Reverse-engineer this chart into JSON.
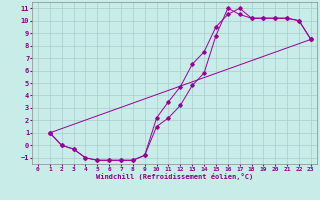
{
  "bg_color": "#c8ece8",
  "grid_color": "#aacccc",
  "line_color": "#990099",
  "xlim": [
    -0.5,
    23.5
  ],
  "ylim": [
    -1.5,
    11.5
  ],
  "xticks": [
    0,
    1,
    2,
    3,
    4,
    5,
    6,
    7,
    8,
    9,
    10,
    11,
    12,
    13,
    14,
    15,
    16,
    17,
    18,
    19,
    20,
    21,
    22,
    23
  ],
  "yticks": [
    -1,
    0,
    1,
    2,
    3,
    4,
    5,
    6,
    7,
    8,
    9,
    10,
    11
  ],
  "xlabel": "Windchill (Refroidissement éolien,°C)",
  "line1_x": [
    1,
    2,
    3,
    4,
    5,
    6,
    7,
    8,
    9,
    10,
    11,
    12,
    13,
    14,
    15,
    16,
    17,
    18,
    19,
    20,
    21,
    22,
    23
  ],
  "line1_y": [
    1.0,
    0.0,
    -0.3,
    -1.0,
    -1.2,
    -1.2,
    -1.2,
    -1.2,
    -0.8,
    1.5,
    2.2,
    3.2,
    4.8,
    5.8,
    8.8,
    11.0,
    10.5,
    10.2,
    10.2,
    10.2,
    10.2,
    10.0,
    8.5
  ],
  "line2_x": [
    1,
    2,
    3,
    4,
    5,
    6,
    7,
    8,
    9,
    10,
    11,
    12,
    13,
    14,
    15,
    16,
    17,
    18,
    19,
    20,
    21,
    22,
    23
  ],
  "line2_y": [
    1.0,
    0.0,
    -0.3,
    -1.0,
    -1.2,
    -1.2,
    -1.2,
    -1.2,
    -0.8,
    2.2,
    3.5,
    4.7,
    6.5,
    7.5,
    9.5,
    10.5,
    11.0,
    10.2,
    10.2,
    10.2,
    10.2,
    10.0,
    8.5
  ],
  "line3_x": [
    1,
    23
  ],
  "line3_y": [
    1.0,
    8.5
  ]
}
